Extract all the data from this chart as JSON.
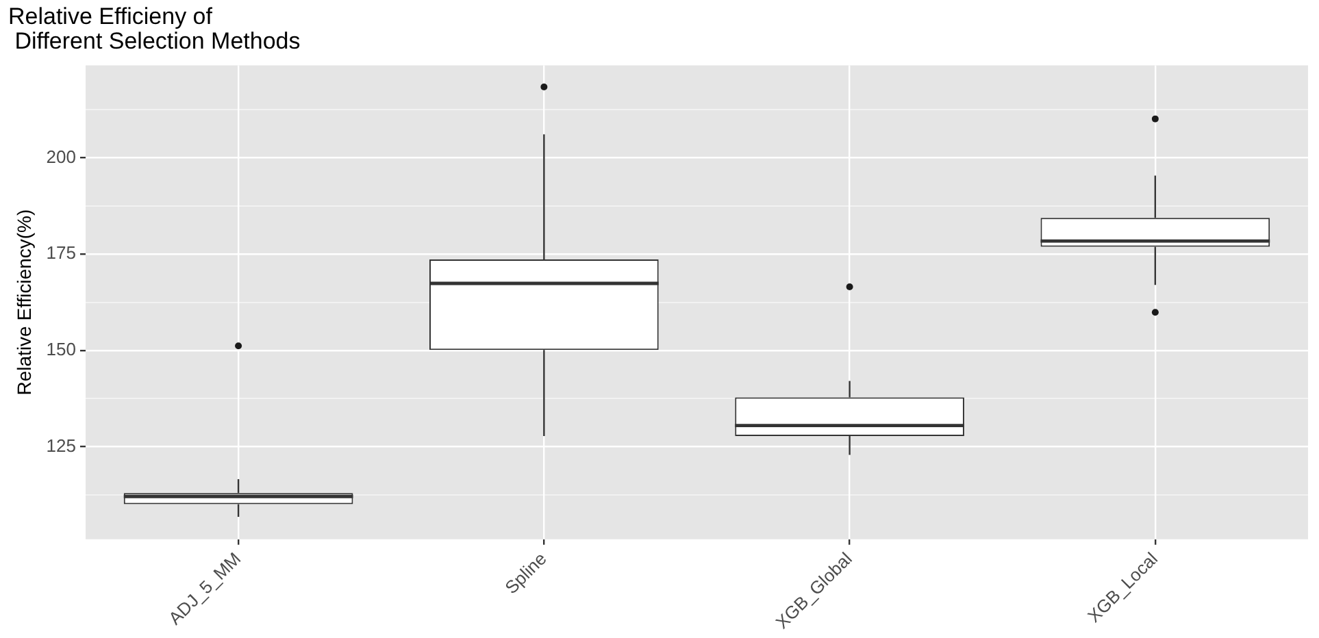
{
  "chart_data": {
    "type": "box",
    "title": "Relative Efficieny of\n Different Selection Methods",
    "ylabel": "Relative Efficiency(%)",
    "categories": [
      "ADJ_5_MM",
      "Spline",
      "XGB_Global",
      "XGB_Local"
    ],
    "boxes": [
      {
        "low": 106.8,
        "q1": 110.1,
        "median": 112.1,
        "q3": 113.0,
        "high": 116.6,
        "outliers": [
          151.2
        ]
      },
      {
        "low": 127.8,
        "q1": 150.1,
        "median": 167.4,
        "q3": 173.6,
        "high": 206.1,
        "outliers": [
          218.4
        ]
      },
      {
        "low": 122.9,
        "q1": 127.8,
        "median": 130.5,
        "q3": 137.8,
        "high": 142.1,
        "outliers": [
          166.5
        ]
      },
      {
        "low": 167.0,
        "q1": 176.9,
        "median": 178.4,
        "q3": 184.4,
        "high": 195.4,
        "outliers": [
          210.1,
          159.9
        ]
      }
    ],
    "color": "#333333",
    "ylim": [
      101,
      224
    ],
    "yticks": [
      {
        "value": 112.5,
        "label": null
      },
      125,
      {
        "value": 137.5,
        "label": null
      },
      150,
      {
        "value": 162.5,
        "label": null
      },
      175,
      {
        "value": 187.5,
        "label": null
      },
      200,
      {
        "value": 212.5,
        "label": null
      }
    ],
    "grid": true,
    "legend": false
  }
}
